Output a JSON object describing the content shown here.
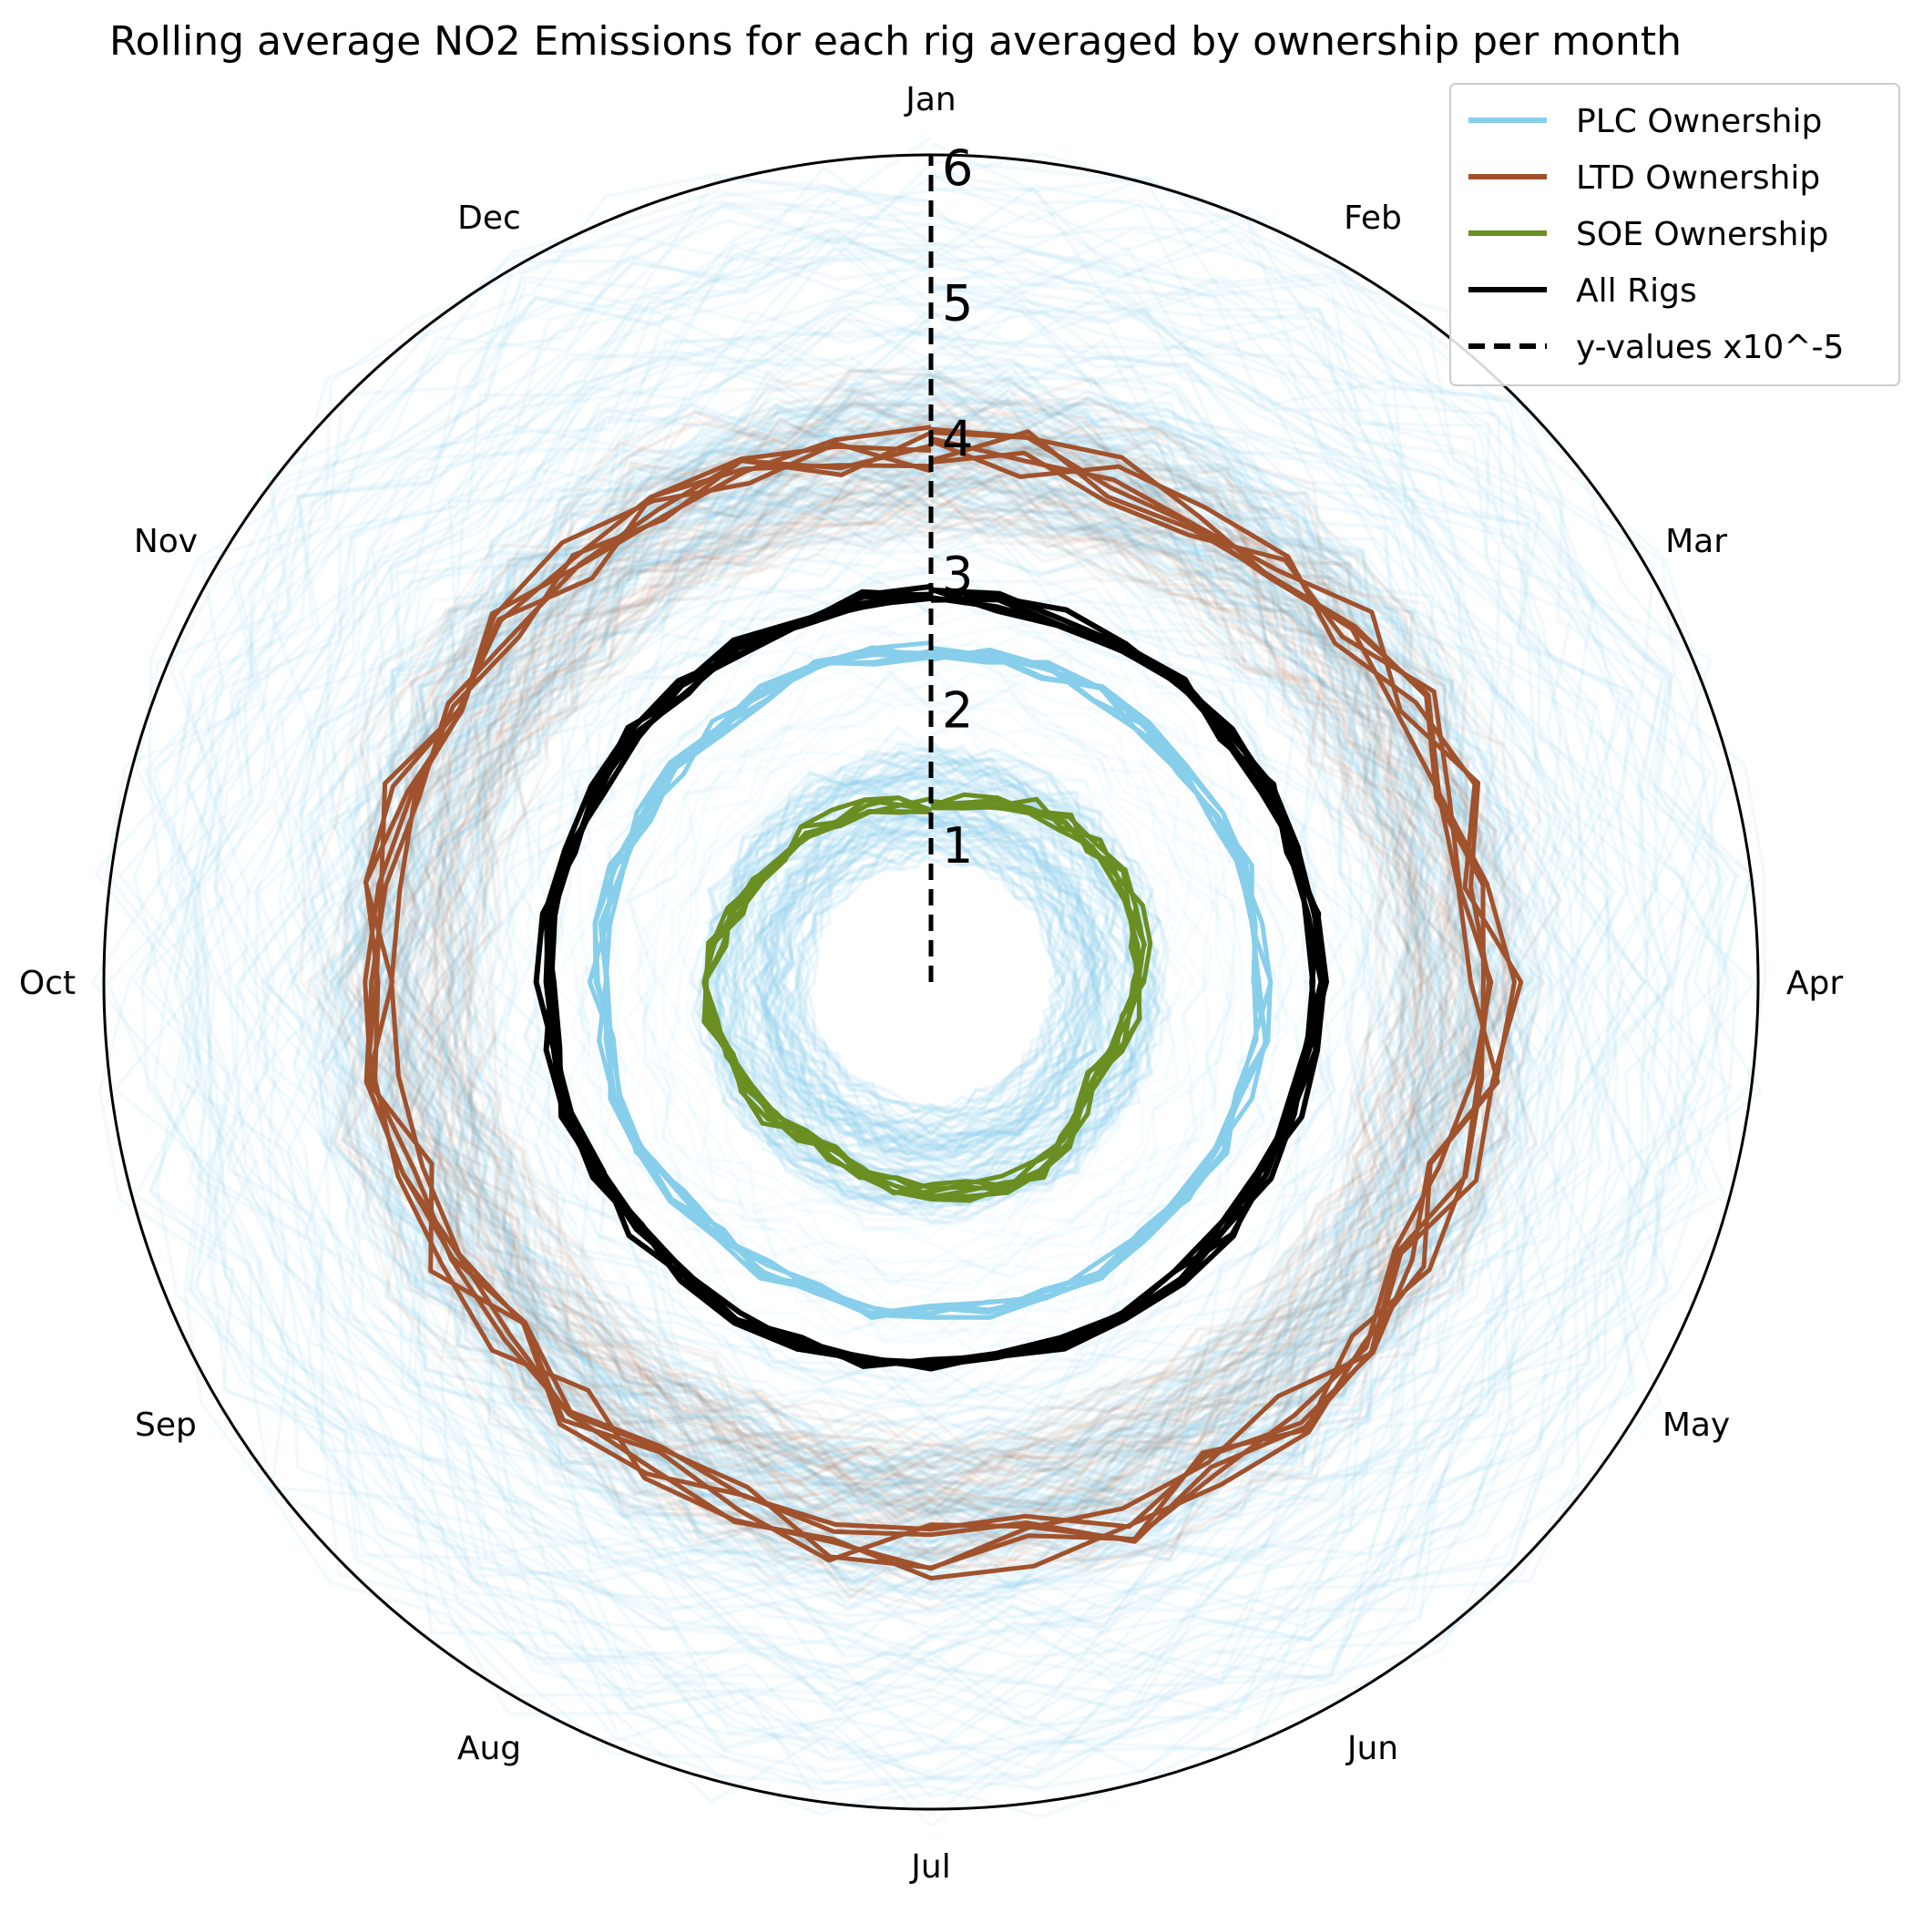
{
  "chart_data": {
    "type": "line",
    "projection": "polar",
    "title": "Rolling average NO2 Emissions for each rig averaged by ownership per month",
    "categories": [
      "Jan",
      "Feb",
      "Mar",
      "Apr",
      "May",
      "Jun",
      "Jul",
      "Aug",
      "Sep",
      "Oct",
      "Nov",
      "Dec"
    ],
    "rlim": [
      0,
      6.1
    ],
    "r_ticks": [
      1,
      2,
      3,
      4,
      5,
      6
    ],
    "r_axis_note": "y-values x10^-5",
    "grid": false,
    "legend_position": "top-right",
    "series": [
      {
        "name": "PLC Ownership",
        "color": "#87ceeb",
        "values": [
          2.45,
          2.45,
          2.45,
          2.45,
          2.45,
          2.45,
          2.45,
          2.45,
          2.45,
          2.45,
          2.45,
          2.45
        ]
      },
      {
        "name": "LTD Ownership",
        "color": "#a0522d",
        "values": [
          3.9,
          4.0,
          4.1,
          4.15,
          4.05,
          4.2,
          4.2,
          4.1,
          4.1,
          4.15,
          4.1,
          4.0
        ]
      },
      {
        "name": "SOE Ownership",
        "color": "#6b8e23",
        "values": [
          1.3,
          1.5,
          1.6,
          1.55,
          1.4,
          1.6,
          1.55,
          1.45,
          1.6,
          1.65,
          1.5,
          1.4
        ]
      },
      {
        "name": "All Rigs",
        "color": "#000000",
        "values": [
          2.85,
          2.85,
          2.85,
          2.85,
          2.85,
          2.85,
          2.85,
          2.85,
          2.85,
          2.85,
          2.85,
          2.85
        ]
      }
    ],
    "legend": [
      {
        "label": "PLC Ownership",
        "color": "#87ceeb",
        "style": "solid"
      },
      {
        "label": "LTD Ownership",
        "color": "#a0522d",
        "style": "solid"
      },
      {
        "label": "SOE Ownership",
        "color": "#6b8e23",
        "style": "solid"
      },
      {
        "label": "All Rigs",
        "color": "#000000",
        "style": "solid"
      },
      {
        "label": "y-values x10^-5",
        "color": "#000000",
        "style": "dashed"
      }
    ]
  }
}
